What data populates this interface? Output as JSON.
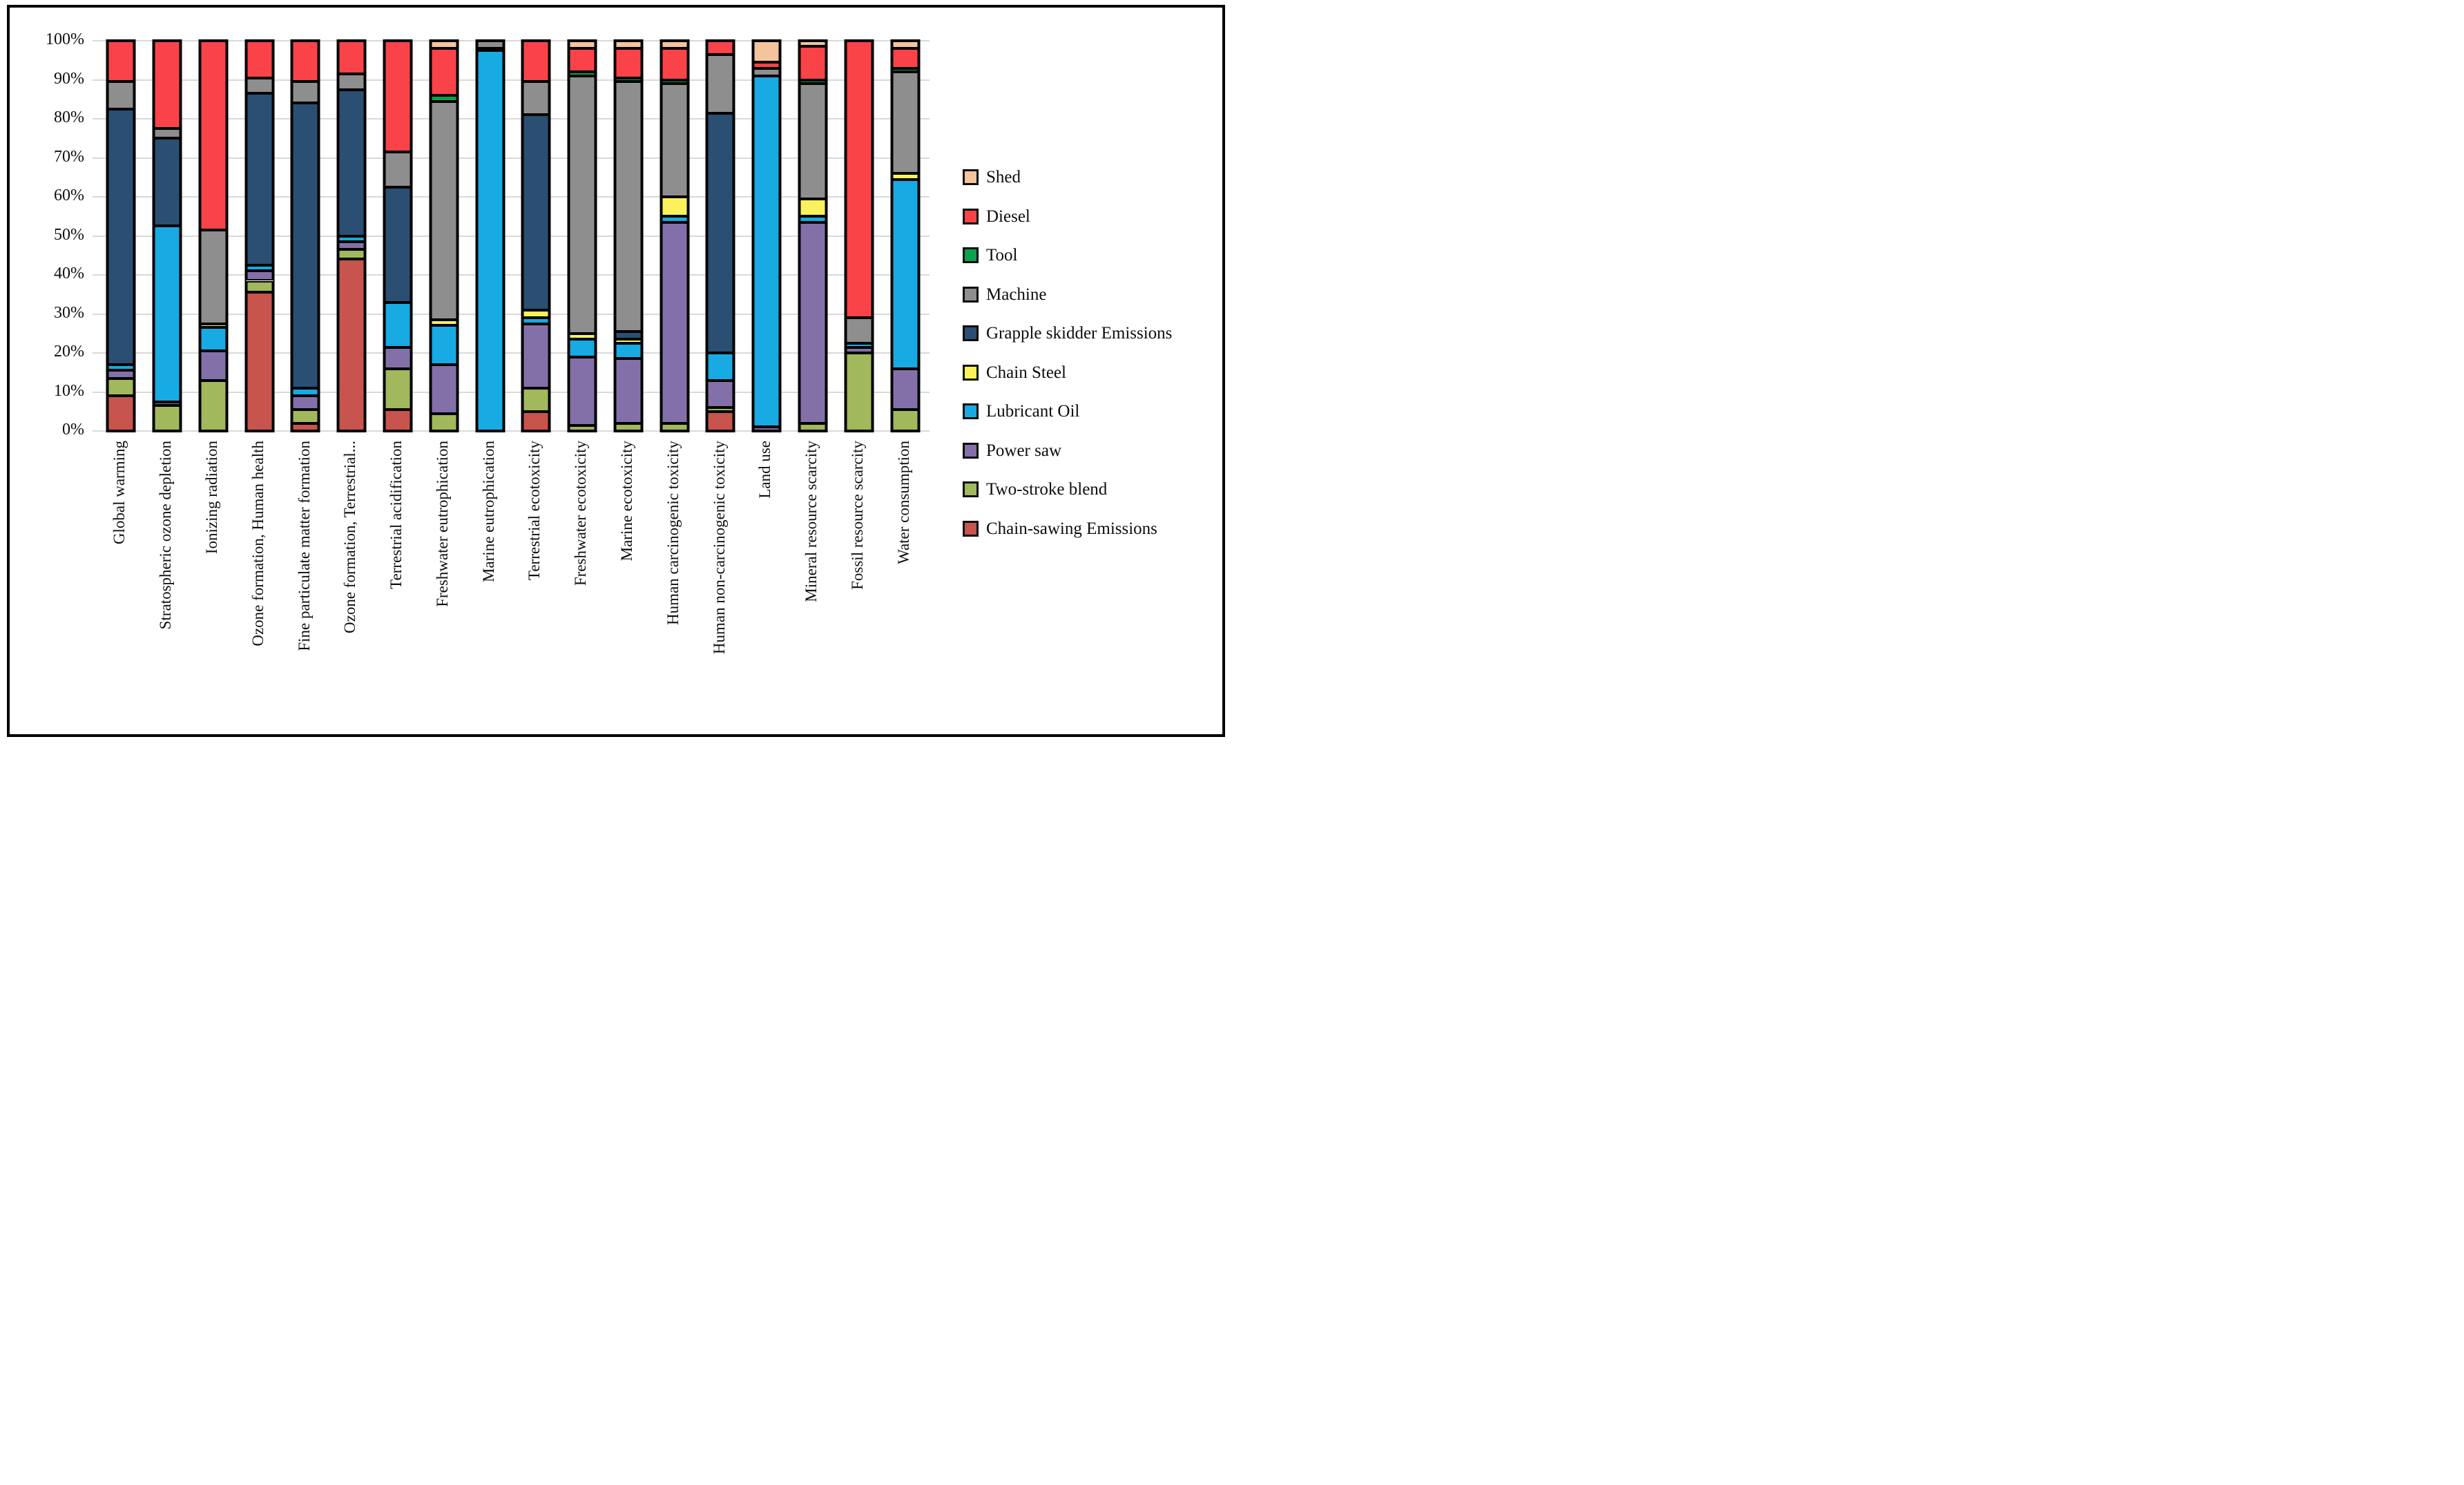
{
  "figure": {
    "background": "#ffffff",
    "frame_border_color": "#000000",
    "gridline_color": "#d9d9d9",
    "bar_outline_color": "#000000"
  },
  "chart_data": {
    "type": "bar",
    "variant": "100-percent-stacked-columns",
    "title": "",
    "xlabel": "",
    "ylabel": "",
    "ylim": [
      0,
      100
    ],
    "grid": "horizontal light-gray lines every 10%",
    "legend_position": "right",
    "y_ticks": [
      "100%",
      "90%",
      "80%",
      "70%",
      "60%",
      "50%",
      "40%",
      "30%",
      "20%",
      "10%",
      "0%"
    ],
    "categories": [
      "Global warming",
      "Stratospheric ozone depletion",
      "Ionizing radiation",
      "Ozone formation, Human health",
      "Fine particulate matter formation",
      "Ozone formation, Terrestrial...",
      "Terrestrial acidification",
      "Freshwater eutrophication",
      "Marine eutrophication",
      "Terrestrial ecotoxicity",
      "Freshwater ecotoxicity",
      "Marine ecotoxicity",
      "Human carcinogenic toxicity",
      "Human non-carcinogenic toxicity",
      "Land use",
      "Mineral resource scarcity",
      "Fossil resource scarcity",
      "Water consumption"
    ],
    "stack_note": "series listed bottom-to-top of stack; legend shows them in reverse order (Shed first)",
    "series": [
      {
        "name": "Chain-sawing Emissions",
        "color": "#c8544e",
        "values": [
          9,
          0,
          0,
          35.5,
          2,
          44,
          5.5,
          0,
          0,
          5,
          0,
          0,
          0,
          5,
          0,
          0,
          0,
          0
        ]
      },
      {
        "name": "Two-stroke blend",
        "color": "#a2b85c",
        "values": [
          4.5,
          6.5,
          13,
          3,
          3.5,
          2.5,
          10.5,
          4.5,
          0,
          6,
          1.5,
          2,
          2,
          1,
          0,
          2,
          20,
          5.5
        ]
      },
      {
        "name": "Power saw",
        "color": "#8470a9",
        "values": [
          2,
          1,
          7.5,
          2.5,
          3.5,
          2,
          5.5,
          12.5,
          0,
          16.5,
          17.5,
          16.5,
          51.5,
          7,
          1,
          51.5,
          1.5,
          10.5
        ]
      },
      {
        "name": "Lubricant Oil",
        "color": "#17aae3",
        "values": [
          1.5,
          45,
          6,
          1.5,
          2,
          1.5,
          11.5,
          10,
          97.5,
          1.5,
          4.5,
          4,
          1.5,
          7,
          90,
          1.5,
          1,
          48.5
        ]
      },
      {
        "name": "Chain Steel",
        "color": "#fbf25b",
        "values": [
          0,
          0,
          1,
          0,
          0,
          0,
          0,
          1.5,
          0,
          2,
          1.5,
          1,
          5,
          0,
          0,
          4.5,
          0,
          1.5
        ]
      },
      {
        "name": "Grapple skidder Emissions",
        "color": "#2a4f72",
        "values": [
          65.5,
          22.5,
          0,
          44,
          73,
          37.5,
          29.5,
          0,
          0.5,
          50,
          0,
          2,
          0,
          61.5,
          0,
          0,
          0,
          0
        ]
      },
      {
        "name": "Machine",
        "color": "#8e8e8e",
        "values": [
          7,
          2.5,
          24,
          4,
          5.5,
          4,
          9,
          56,
          2,
          8.5,
          66,
          64,
          29,
          15,
          2,
          29.5,
          6.5,
          26
        ]
      },
      {
        "name": "Tool",
        "color": "#0aa150",
        "values": [
          0,
          0,
          0,
          0,
          0,
          0,
          0,
          1.5,
          0,
          0,
          1,
          1,
          1,
          0,
          0,
          1,
          0,
          1
        ]
      },
      {
        "name": "Diesel",
        "color": "#fa4348",
        "values": [
          10.5,
          22.5,
          48.5,
          9.5,
          10.5,
          8.5,
          28.5,
          12,
          0,
          10.5,
          6,
          7.5,
          8,
          3.5,
          1.5,
          8.5,
          71,
          5
        ]
      },
      {
        "name": "Shed",
        "color": "#f6c49c",
        "values": [
          0,
          0,
          0,
          0,
          0,
          0,
          0,
          2,
          0,
          0,
          2,
          2,
          2,
          0,
          5.5,
          1.5,
          0,
          2
        ]
      }
    ]
  }
}
